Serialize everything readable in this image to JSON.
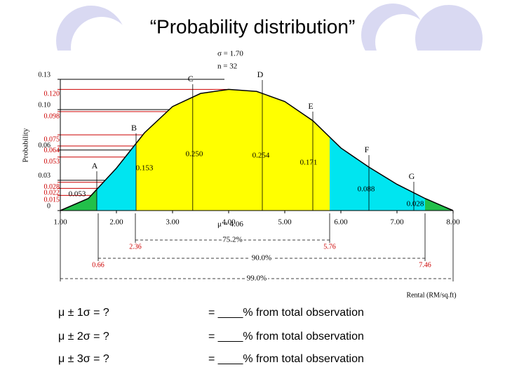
{
  "title": "“Probability distribution”",
  "chart_data": {
    "type": "distribution",
    "sigma_label": "σ = 1.70",
    "n_label": "n = 32",
    "mu_label": "μ = 4.06",
    "xlabel": "Rental (RM/sq.ft)",
    "ylabel": "Probability",
    "xlim": [
      1,
      8
    ],
    "xticks": [
      {
        "value": 1,
        "label": "1.00"
      },
      {
        "value": 2,
        "label": "2.00"
      },
      {
        "value": 3,
        "label": "3.00"
      },
      {
        "value": 4,
        "label": "4.00"
      },
      {
        "value": 5,
        "label": "5.00"
      },
      {
        "value": 6,
        "label": "6.00"
      },
      {
        "value": 7,
        "label": "7.00"
      },
      {
        "value": 8,
        "label": "8.00"
      }
    ],
    "ylim": [
      0,
      0.13
    ],
    "yticks": [
      0.13,
      {
        "value": 0.1,
        "label": "0.10"
      },
      0.06,
      0.03,
      0
    ],
    "ref_color": "#cc0000",
    "ref_ticks": [
      {
        "value": 0.12,
        "label": "0.120"
      },
      0.098,
      0.075,
      0.064,
      0.053,
      0.028,
      0.022,
      0.015
    ],
    "x": [
      1,
      1.5,
      2,
      2.5,
      3,
      3.5,
      4,
      4.5,
      5,
      5.5,
      6,
      6.5,
      7,
      7.5,
      8
    ],
    "values": [
      0,
      0.012,
      0.042,
      0.077,
      0.103,
      0.116,
      0.12,
      0.118,
      0.108,
      0.089,
      0.062,
      0.043,
      0.026,
      0.012,
      0
    ],
    "regions": [
      {
        "from": 1,
        "to": 1.65,
        "color": "#22c04a",
        "label": "0.053"
      },
      {
        "from": 1.65,
        "to": 2.35,
        "color": "#00e5f0",
        "label": "0.153"
      },
      {
        "from": 2.35,
        "to": 5.8,
        "color": "#ffff00",
        "label": "0.250"
      },
      {
        "from": 2.35,
        "to": 5.8,
        "color": "#ffff00",
        "label": "0.254"
      },
      {
        "from": 2.35,
        "to": 5.8,
        "color": "#ffff00",
        "label": "0.171"
      },
      {
        "from": 5.8,
        "to": 7.5,
        "color": "#00e5f0",
        "label": "0.088"
      },
      {
        "from": 7.5,
        "to": 8,
        "color": "#22c04a",
        "label": "0.028"
      }
    ],
    "points": [
      {
        "label": "A",
        "x": 1.65
      },
      {
        "label": "B",
        "x": 2.35
      },
      {
        "label": "C",
        "x": 3.36
      },
      {
        "label": "D",
        "x": 4.6
      },
      {
        "label": "E",
        "x": 5.5
      },
      {
        "label": "F",
        "x": 6.5
      },
      {
        "label": "G",
        "x": 7.3
      }
    ],
    "ranges": [
      {
        "label": "75.2%",
        "from": "2.36",
        "to": "5.76"
      },
      {
        "label": "90.0%",
        "from": "0.66",
        "to": "7.46"
      },
      {
        "label": "99.0%"
      }
    ]
  },
  "questions": [
    {
      "left": "μ ± 1σ = ?",
      "right": "= ____% from total observation"
    },
    {
      "left": "μ ± 2σ = ?",
      "right": "= ____% from total observation"
    },
    {
      "left": "μ ± 3σ = ?",
      "right": "= ____% from total observation"
    }
  ]
}
